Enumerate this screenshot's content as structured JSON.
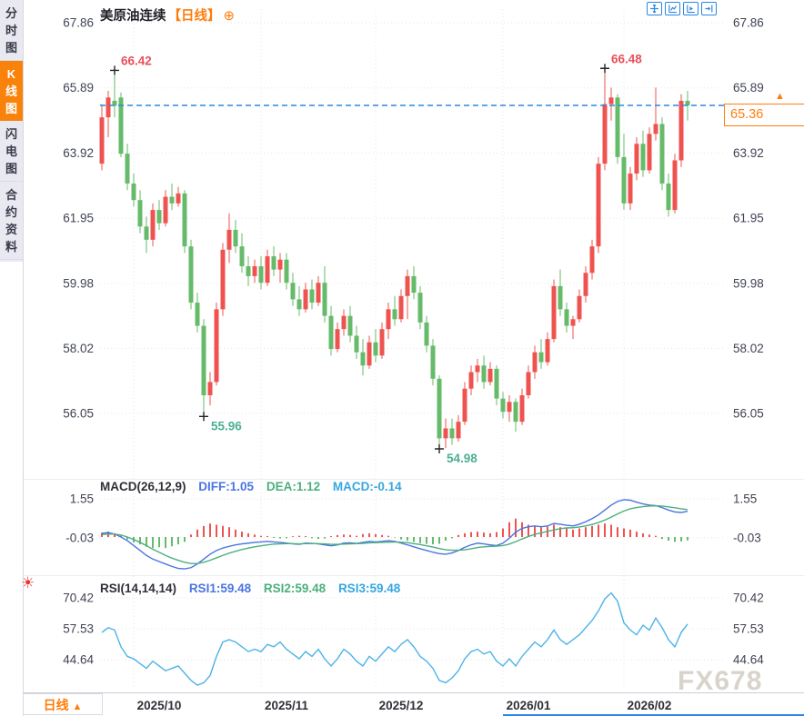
{
  "header": {
    "title": "美原油连续",
    "timeframe_tag": "【日线】",
    "plus_icon": "⊕"
  },
  "sidebar": {
    "items": [
      {
        "label": "分时图",
        "active": false
      },
      {
        "label": "K线图",
        "active": true
      },
      {
        "label": "闪电图",
        "active": false
      },
      {
        "label": "合约资料",
        "active": false
      }
    ]
  },
  "toolbar": {
    "icons": [
      "pan-crosshair",
      "auto-scale-chart",
      "play-chart",
      "goto-latest"
    ]
  },
  "price_tag": {
    "value": "65.36",
    "arrow": "▲"
  },
  "macd_header": {
    "name": "MACD(26,12,9)",
    "diff_label": "DIFF:1.05",
    "dea_label": "DEA:1.12",
    "macd_label": "MACD:-0.14"
  },
  "rsi_header": {
    "name": "RSI(14,14,14)",
    "rsi1_label": "RSI1:59.48",
    "rsi2_label": "RSI2:59.48",
    "rsi3_label": "RSI3:59.48"
  },
  "sun_icon": "☀",
  "bottom_bar": {
    "timeframe": "日线",
    "arrow": "▲"
  },
  "watermark": "FX678",
  "colors": {
    "up": "#ef5350",
    "down": "#66bb6a",
    "accent_orange": "#ff7d0d",
    "accent_blue": "#2b87e3",
    "ann_red": "#e8505a",
    "ann_green": "#4caf93",
    "diff_line": "#4a74e0",
    "dea_line": "#4caf7d",
    "rsi_line": "#4db3e6",
    "axis_text": "#3f4254",
    "month_text": "#2e3138",
    "grid": "#e3e6ee"
  },
  "chart_data": {
    "type": "candlestick+indicators",
    "title": "美原油连续 日线 (US Crude Oil Continuous, Daily)",
    "price_axis": {
      "ticks": [
        67.86,
        65.89,
        63.92,
        61.95,
        59.98,
        58.02,
        56.05
      ],
      "last_price": 65.36
    },
    "month_ticks": [
      {
        "label": "2025/10",
        "index": 5
      },
      {
        "label": "2025/11",
        "index": 25
      },
      {
        "label": "2025/12",
        "index": 43
      },
      {
        "label": "2026/01",
        "index": 63
      },
      {
        "label": "2026/02",
        "index": 82
      }
    ],
    "annotations": [
      {
        "label": "66.42",
        "price": 66.42,
        "index": 2,
        "side": "high",
        "color": "red"
      },
      {
        "label": "66.48",
        "price": 66.48,
        "index": 79,
        "side": "high",
        "color": "red"
      },
      {
        "label": "55.96",
        "price": 55.96,
        "index": 16,
        "side": "low",
        "color": "green"
      },
      {
        "label": "54.98",
        "price": 54.98,
        "index": 53,
        "side": "low",
        "color": "green"
      }
    ],
    "candles": [
      [
        63.6,
        65.4,
        63.4,
        65.0
      ],
      [
        65.0,
        65.8,
        64.4,
        65.6
      ],
      [
        65.5,
        66.42,
        65.0,
        65.35
      ],
      [
        65.6,
        65.75,
        63.8,
        63.9
      ],
      [
        63.9,
        64.2,
        62.8,
        63.0
      ],
      [
        63.0,
        63.3,
        62.3,
        62.5
      ],
      [
        62.5,
        62.8,
        61.5,
        61.7
      ],
      [
        61.7,
        62.0,
        60.9,
        61.3
      ],
      [
        61.3,
        62.4,
        61.1,
        62.2
      ],
      [
        62.2,
        62.5,
        61.6,
        61.8
      ],
      [
        61.8,
        62.8,
        61.7,
        62.6
      ],
      [
        62.6,
        63.0,
        62.2,
        62.4
      ],
      [
        62.4,
        62.9,
        62.3,
        62.7
      ],
      [
        62.7,
        62.8,
        60.9,
        61.1
      ],
      [
        61.1,
        61.3,
        59.2,
        59.4
      ],
      [
        59.4,
        59.7,
        58.5,
        58.7
      ],
      [
        58.7,
        58.9,
        55.96,
        56.6
      ],
      [
        56.6,
        57.3,
        56.3,
        57.0
      ],
      [
        57.0,
        59.4,
        56.9,
        59.2
      ],
      [
        59.2,
        61.2,
        59.0,
        61.0
      ],
      [
        61.0,
        62.1,
        60.6,
        61.6
      ],
      [
        61.6,
        61.9,
        60.9,
        61.1
      ],
      [
        61.1,
        61.5,
        60.3,
        60.5
      ],
      [
        60.5,
        60.8,
        59.9,
        60.2
      ],
      [
        60.2,
        60.7,
        60.0,
        60.5
      ],
      [
        60.5,
        60.8,
        59.8,
        60.0
      ],
      [
        60.0,
        61.0,
        59.9,
        60.8
      ],
      [
        60.8,
        61.1,
        60.2,
        60.4
      ],
      [
        60.4,
        60.9,
        60.0,
        60.7
      ],
      [
        60.7,
        60.9,
        59.8,
        60.0
      ],
      [
        60.0,
        60.3,
        59.3,
        59.5
      ],
      [
        59.5,
        59.9,
        59.0,
        59.2
      ],
      [
        59.2,
        60.0,
        59.1,
        59.8
      ],
      [
        59.8,
        60.1,
        59.2,
        59.4
      ],
      [
        59.4,
        60.2,
        59.3,
        60.0
      ],
      [
        60.0,
        60.5,
        58.8,
        59.0
      ],
      [
        59.0,
        59.3,
        57.8,
        58.0
      ],
      [
        58.0,
        58.8,
        57.9,
        58.6
      ],
      [
        58.6,
        59.2,
        58.4,
        59.0
      ],
      [
        59.0,
        59.3,
        58.2,
        58.4
      ],
      [
        58.4,
        58.7,
        57.7,
        57.9
      ],
      [
        57.9,
        58.3,
        57.2,
        57.5
      ],
      [
        57.5,
        58.4,
        57.4,
        58.2
      ],
      [
        58.2,
        58.6,
        57.6,
        57.8
      ],
      [
        57.8,
        58.8,
        57.7,
        58.6
      ],
      [
        58.6,
        59.4,
        58.3,
        59.2
      ],
      [
        59.2,
        59.6,
        58.7,
        58.9
      ],
      [
        58.9,
        59.8,
        58.8,
        59.6
      ],
      [
        59.6,
        60.4,
        58.9,
        60.2
      ],
      [
        60.2,
        60.5,
        59.5,
        59.7
      ],
      [
        59.7,
        59.9,
        58.6,
        58.8
      ],
      [
        58.8,
        59.0,
        57.9,
        58.1
      ],
      [
        58.1,
        58.3,
        56.9,
        57.1
      ],
      [
        57.1,
        57.2,
        54.98,
        55.3
      ],
      [
        55.3,
        55.9,
        55.0,
        55.6
      ],
      [
        55.6,
        55.9,
        55.1,
        55.3
      ],
      [
        55.3,
        56.0,
        55.2,
        55.8
      ],
      [
        55.8,
        57.0,
        55.7,
        56.8
      ],
      [
        56.8,
        57.5,
        56.6,
        57.3
      ],
      [
        57.3,
        57.7,
        57.0,
        57.5
      ],
      [
        57.5,
        57.8,
        56.8,
        57.0
      ],
      [
        57.0,
        57.6,
        56.9,
        57.4
      ],
      [
        57.4,
        57.5,
        56.3,
        56.5
      ],
      [
        56.5,
        56.7,
        55.9,
        56.1
      ],
      [
        56.1,
        56.6,
        55.8,
        56.4
      ],
      [
        56.4,
        56.5,
        55.5,
        55.8
      ],
      [
        55.8,
        56.8,
        55.7,
        56.6
      ],
      [
        56.6,
        57.5,
        56.5,
        57.3
      ],
      [
        57.3,
        58.1,
        57.1,
        57.9
      ],
      [
        57.9,
        58.3,
        57.4,
        57.6
      ],
      [
        57.6,
        58.5,
        57.5,
        58.3
      ],
      [
        58.3,
        60.1,
        58.2,
        59.9
      ],
      [
        59.9,
        60.4,
        59.0,
        59.2
      ],
      [
        59.2,
        59.4,
        58.5,
        58.7
      ],
      [
        58.7,
        59.0,
        58.3,
        58.9
      ],
      [
        58.9,
        59.8,
        58.8,
        59.6
      ],
      [
        59.6,
        60.5,
        59.4,
        60.3
      ],
      [
        60.3,
        61.3,
        60.1,
        61.1
      ],
      [
        61.1,
        63.8,
        60.9,
        63.6
      ],
      [
        63.6,
        66.48,
        63.4,
        65.4
      ],
      [
        65.4,
        65.9,
        64.9,
        65.6
      ],
      [
        65.6,
        65.7,
        63.6,
        63.8
      ],
      [
        63.8,
        64.5,
        62.2,
        62.4
      ],
      [
        62.4,
        63.5,
        62.2,
        63.3
      ],
      [
        63.3,
        64.4,
        63.1,
        64.2
      ],
      [
        64.2,
        64.6,
        63.2,
        63.4
      ],
      [
        63.4,
        64.7,
        63.3,
        64.5
      ],
      [
        64.5,
        65.9,
        64.3,
        64.8
      ],
      [
        64.8,
        65.0,
        62.8,
        63.0
      ],
      [
        63.0,
        63.3,
        62.0,
        62.2
      ],
      [
        62.2,
        63.9,
        62.1,
        63.7
      ],
      [
        63.7,
        65.7,
        63.5,
        65.5
      ],
      [
        65.5,
        65.8,
        64.9,
        65.36
      ]
    ],
    "macd": {
      "ticks": [
        1.55,
        -0.03
      ],
      "current": {
        "diff": 1.05,
        "dea": 1.12,
        "macd": -0.14
      },
      "hist": [
        0.18,
        0.22,
        0.15,
        0.05,
        -0.1,
        -0.22,
        -0.3,
        -0.4,
        -0.45,
        -0.42,
        -0.45,
        -0.38,
        -0.3,
        -0.2,
        0.1,
        0.3,
        0.45,
        0.55,
        0.5,
        0.45,
        0.4,
        0.3,
        0.22,
        0.15,
        0.1,
        0.05,
        0.04,
        -0.04,
        -0.06,
        -0.05,
        0.03,
        0.05,
        0.04,
        -0.05,
        -0.08,
        -0.06,
        0.04,
        0.08,
        0.1,
        0.08,
        0.05,
        0.12,
        0.15,
        0.12,
        0.08,
        0.05,
        -0.02,
        -0.1,
        -0.15,
        -0.2,
        -0.25,
        -0.28,
        -0.3,
        -0.28,
        -0.15,
        -0.05,
        0.08,
        0.15,
        0.2,
        0.22,
        0.18,
        0.15,
        0.2,
        0.35,
        0.6,
        0.75,
        0.6,
        0.5,
        0.45,
        0.4,
        0.42,
        0.5,
        0.4,
        0.35,
        0.3,
        0.35,
        0.4,
        0.45,
        0.5,
        0.55,
        0.5,
        0.4,
        0.35,
        0.3,
        0.22,
        0.15,
        0.1,
        0.05,
        -0.08,
        -0.15,
        -0.2,
        -0.18,
        -0.14
      ],
      "diff": [
        0.15,
        0.18,
        0.12,
        0.0,
        -0.15,
        -0.35,
        -0.55,
        -0.75,
        -0.9,
        -1.0,
        -1.1,
        -1.2,
        -1.28,
        -1.3,
        -1.25,
        -1.1,
        -0.9,
        -0.7,
        -0.55,
        -0.45,
        -0.38,
        -0.32,
        -0.28,
        -0.25,
        -0.22,
        -0.2,
        -0.18,
        -0.2,
        -0.22,
        -0.25,
        -0.28,
        -0.3,
        -0.25,
        -0.26,
        -0.28,
        -0.32,
        -0.36,
        -0.32,
        -0.25,
        -0.24,
        -0.26,
        -0.22,
        -0.18,
        -0.2,
        -0.18,
        -0.15,
        -0.18,
        -0.25,
        -0.32,
        -0.4,
        -0.48,
        -0.55,
        -0.62,
        -0.68,
        -0.7,
        -0.65,
        -0.55,
        -0.42,
        -0.32,
        -0.25,
        -0.28,
        -0.32,
        -0.35,
        -0.25,
        -0.05,
        0.2,
        0.35,
        0.42,
        0.45,
        0.42,
        0.45,
        0.55,
        0.52,
        0.48,
        0.45,
        0.52,
        0.62,
        0.75,
        0.9,
        1.1,
        1.3,
        1.45,
        1.52,
        1.5,
        1.42,
        1.35,
        1.3,
        1.28,
        1.2,
        1.1,
        1.02,
        1.0,
        1.05
      ],
      "dea": [
        0.1,
        0.12,
        0.12,
        0.08,
        0.0,
        -0.1,
        -0.22,
        -0.35,
        -0.5,
        -0.62,
        -0.75,
        -0.86,
        -0.95,
        -1.03,
        -1.08,
        -1.08,
        -1.03,
        -0.95,
        -0.85,
        -0.75,
        -0.66,
        -0.58,
        -0.51,
        -0.45,
        -0.4,
        -0.36,
        -0.32,
        -0.29,
        -0.28,
        -0.27,
        -0.27,
        -0.28,
        -0.27,
        -0.27,
        -0.27,
        -0.28,
        -0.3,
        -0.3,
        -0.29,
        -0.28,
        -0.27,
        -0.26,
        -0.24,
        -0.23,
        -0.22,
        -0.21,
        -0.2,
        -0.21,
        -0.23,
        -0.27,
        -0.31,
        -0.36,
        -0.41,
        -0.47,
        -0.52,
        -0.54,
        -0.54,
        -0.52,
        -0.48,
        -0.43,
        -0.4,
        -0.38,
        -0.37,
        -0.35,
        -0.29,
        -0.19,
        -0.08,
        0.02,
        0.11,
        0.17,
        0.23,
        0.29,
        0.34,
        0.37,
        0.38,
        0.41,
        0.45,
        0.51,
        0.59,
        0.69,
        0.81,
        0.94,
        1.06,
        1.15,
        1.2,
        1.24,
        1.26,
        1.27,
        1.26,
        1.23,
        1.19,
        1.15,
        1.12
      ]
    },
    "rsi": {
      "ticks": [
        70.42,
        57.53,
        44.64
      ],
      "current": {
        "rsi1": 59.48,
        "rsi2": 59.48,
        "rsi3": 59.48
      },
      "values": [
        56,
        58,
        57,
        50,
        46,
        45,
        43,
        41,
        44,
        42,
        40,
        41,
        42,
        39,
        36,
        34,
        35,
        38,
        46,
        52,
        53,
        52,
        50,
        48,
        49,
        48,
        51,
        50,
        52,
        49,
        47,
        45,
        48,
        46,
        49,
        45,
        42,
        45,
        49,
        47,
        44,
        42,
        46,
        44,
        47,
        50,
        48,
        51,
        53,
        50,
        46,
        44,
        41,
        36,
        35,
        37,
        40,
        45,
        48,
        49,
        47,
        48,
        44,
        42,
        45,
        42,
        46,
        49,
        52,
        50,
        53,
        57,
        53,
        51,
        53,
        55,
        58,
        61,
        65,
        70,
        72.5,
        69,
        60,
        57,
        55,
        59,
        57,
        62,
        58,
        53,
        50,
        56,
        59.48
      ]
    }
  }
}
